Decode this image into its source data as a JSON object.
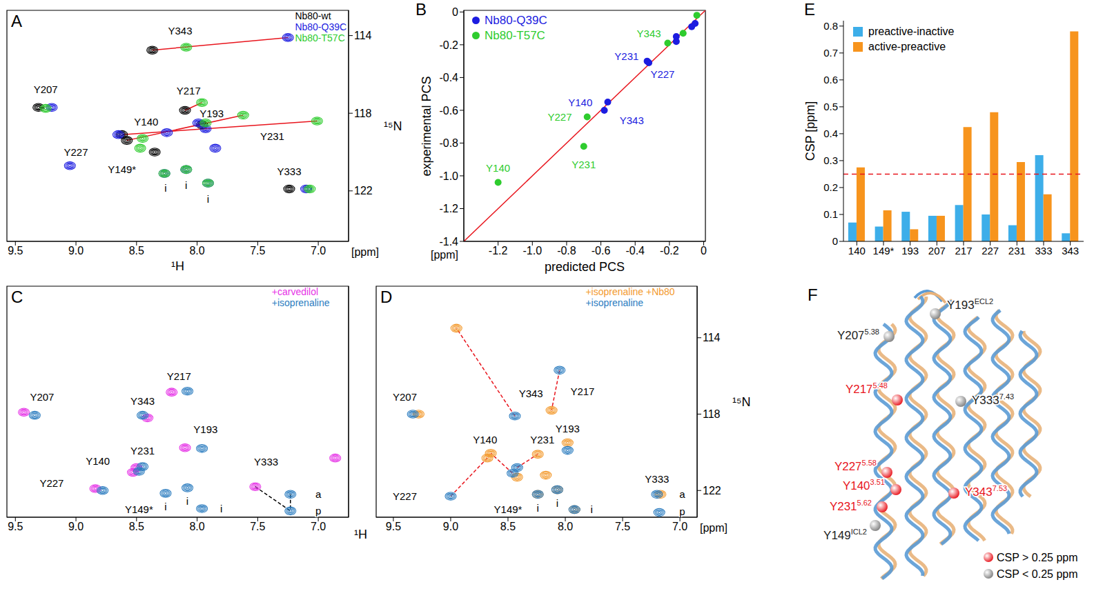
{
  "chart_data": [
    {
      "panel": "A",
      "type": "scatter",
      "x_label": "¹H",
      "x_unit": "[ppm]",
      "y_label": "¹⁵N",
      "xlim": [
        9.57,
        6.75
      ],
      "ylim": [
        124.6,
        112.7
      ],
      "xticks": [
        9.5,
        {
          "value": 9,
          "label": "9.0"
        },
        8.5,
        {
          "value": 8,
          "label": "8.0"
        },
        7.5,
        {
          "value": 7,
          "label": "7.0"
        }
      ],
      "yticks": [
        114,
        118,
        122
      ],
      "legend": "upper right",
      "series": [
        {
          "name": "Nb80-wt",
          "color": "#000000",
          "marker": "contour",
          "x": [
            8.37,
            9.31,
            8.1,
            8.62,
            8.58,
            7.96,
            8.35,
            7.24
          ],
          "y": [
            114.75,
            117.7,
            117.85,
            119.1,
            119.4,
            118.6,
            120.0,
            121.9
          ]
        },
        {
          "name": "Nb80-Q39C",
          "color": "#1c1ce0",
          "marker": "contour",
          "x": [
            7.25,
            9.2,
            8.25,
            8.65,
            7.99,
            7.93,
            7.1,
            8.27,
            8.09,
            7.91,
            7.85,
            9.05
          ],
          "y": [
            114.1,
            117.7,
            119.0,
            119.1,
            118.5,
            118.8,
            121.9,
            121.1,
            120.9,
            121.6,
            119.8,
            120.7
          ]
        },
        {
          "name": "Nb80-T57C",
          "color": "#2ecc2e",
          "marker": "contour",
          "x": [
            8.09,
            9.25,
            7.96,
            7.62,
            7.01,
            8.47,
            7.93,
            7.07,
            8.27,
            8.09,
            7.91,
            8.45
          ],
          "y": [
            114.6,
            117.75,
            117.45,
            118.1,
            118.4,
            119.8,
            118.5,
            121.9,
            121.1,
            120.9,
            121.6,
            119.3
          ]
        }
      ],
      "lines": [
        {
          "x": [
            8.37,
            7.25
          ],
          "y": [
            114.75,
            114.1
          ],
          "color": "#e8141c",
          "line_style": "solid"
        },
        {
          "x": [
            8.1,
            7.96
          ],
          "y": [
            117.85,
            117.45
          ],
          "color": "#e8141c",
          "line_style": "solid"
        },
        {
          "x": [
            8.62,
            7.01
          ],
          "y": [
            119.1,
            118.4
          ],
          "color": "#e8141c",
          "line_style": "solid"
        },
        {
          "x": [
            8.58,
            7.62
          ],
          "y": [
            119.4,
            118.1
          ],
          "color": "#e8141c",
          "line_style": "solid"
        }
      ],
      "annotations": [
        {
          "text": "Y343",
          "x": 8.14,
          "y": 113.75
        },
        {
          "text": "Y207",
          "x": 9.25,
          "y": 116.75
        },
        {
          "text": "Y217",
          "x": 8.07,
          "y": 116.85
        },
        {
          "text": "Y140",
          "x": 8.42,
          "y": 118.45
        },
        {
          "text": "Y193",
          "x": 7.88,
          "y": 118.0
        },
        {
          "text": "Y231",
          "x": 7.38,
          "y": 119.2
        },
        {
          "text": "Y227",
          "x": 9.0,
          "y": 120.0
        },
        {
          "text": "Y149*",
          "x": 8.62,
          "y": 120.9
        },
        {
          "text": "Y333",
          "x": 7.24,
          "y": 121.0
        },
        {
          "text": "i",
          "x": 8.26,
          "y": 121.85
        },
        {
          "text": "i",
          "x": 8.09,
          "y": 121.7
        },
        {
          "text": "i",
          "x": 7.91,
          "y": 122.4
        }
      ]
    },
    {
      "panel": "B",
      "type": "scatter",
      "x_label": "predicted PCS",
      "y_label": "experimental PCS",
      "x_unit": "[ppm]",
      "xlim": [
        -1.4,
        0.01
      ],
      "ylim": [
        -1.4,
        0.01
      ],
      "xticks": [
        -1.2,
        {
          "value": -1,
          "label": "-1.0"
        },
        -0.8,
        -0.6,
        -0.4,
        -0.2,
        0
      ],
      "yticks": [
        {
          "value": 0,
          "label": "0"
        },
        -0.2,
        -0.4,
        -0.6,
        -0.8,
        {
          "value": -1,
          "label": "-1.0"
        },
        -1.2,
        -1.4
      ],
      "legend": "upper left",
      "series": [
        {
          "name": "Nb80-Q39C",
          "color": "#1c1ce0",
          "marker": "circle",
          "x": [
            -0.56,
            -0.58,
            -0.33,
            -0.32,
            -0.16,
            -0.16,
            -0.07,
            -0.05
          ],
          "y": [
            -0.55,
            -0.6,
            -0.3,
            -0.31,
            -0.15,
            -0.18,
            -0.09,
            -0.07
          ]
        },
        {
          "name": "Nb80-T57C",
          "color": "#2ecc2e",
          "marker": "circle",
          "x": [
            -1.2,
            -0.7,
            -0.68,
            -0.21,
            -0.12,
            -0.04
          ],
          "y": [
            -1.04,
            -0.82,
            -0.64,
            -0.19,
            -0.13,
            -0.02
          ]
        }
      ],
      "lines": [
        {
          "x": [
            -1.4,
            0.01
          ],
          "y": [
            -1.4,
            0.01
          ],
          "color": "#e8141c",
          "line_style": "solid"
        }
      ],
      "annotations": [
        {
          "text": "Y343",
          "x": -0.32,
          "y": -0.13,
          "color": "#2ecc2e"
        },
        {
          "text": "Y231",
          "x": -0.45,
          "y": -0.27,
          "color": "#1c1ce0"
        },
        {
          "text": "Y227",
          "x": -0.24,
          "y": -0.38,
          "color": "#1c1ce0"
        },
        {
          "text": "Y140",
          "x": -0.72,
          "y": -0.55,
          "color": "#1c1ce0"
        },
        {
          "text": "Y343",
          "x": -0.42,
          "y": -0.66,
          "color": "#1c1ce0"
        },
        {
          "text": "Y227",
          "x": -0.84,
          "y": -0.64,
          "color": "#2ecc2e"
        },
        {
          "text": "Y231",
          "x": -0.7,
          "y": -0.93,
          "color": "#2ecc2e"
        },
        {
          "text": "Y140",
          "x": -1.2,
          "y": -0.95,
          "color": "#2ecc2e"
        }
      ]
    },
    {
      "panel": "C",
      "type": "scatter",
      "x_label": "¹H",
      "tick_labels": "x",
      "xlim": [
        9.57,
        6.75
      ],
      "ylim": [
        123.4,
        111.3
      ],
      "xticks": [
        9.5,
        {
          "value": 9,
          "label": "9.0"
        },
        8.5,
        {
          "value": 8,
          "label": "8.0"
        },
        7.5,
        {
          "value": 7,
          "label": "7.0"
        }
      ],
      "legend": "upper right",
      "series": [
        {
          "name": "+carvedilol",
          "color": "#e633e6",
          "marker": "contour",
          "x": [
            9.43,
            8.21,
            8.41,
            8.1,
            8.53,
            8.5,
            8.84,
            7.52,
            6.86
          ],
          "y": [
            117.9,
            116.85,
            118.2,
            119.76,
            121.05,
            120.8,
            121.9,
            121.8,
            120.3
          ]
        },
        {
          "name": "+isoprenaline",
          "color": "#2b7cbf",
          "marker": "contour",
          "x": [
            9.34,
            8.08,
            8.45,
            7.96,
            8.48,
            8.45,
            8.78,
            8.26,
            8.08,
            7.96,
            7.23,
            7.23
          ],
          "y": [
            118.06,
            116.8,
            118.06,
            119.8,
            121.0,
            120.75,
            122.0,
            122.15,
            121.86,
            122.95,
            122.2,
            123.07
          ]
        }
      ],
      "lines": [
        {
          "x": [
            7.52,
            7.23
          ],
          "y": [
            121.8,
            123.07
          ],
          "color": "#000000",
          "line_style": "dashed"
        },
        {
          "x": [
            7.23,
            7.23
          ],
          "y": [
            122.2,
            123.07
          ],
          "color": "#000000",
          "line_style": "dashed"
        }
      ],
      "annotations": [
        {
          "text": "Y217",
          "x": 8.15,
          "y": 116.0
        },
        {
          "text": "Y207",
          "x": 9.28,
          "y": 117.1
        },
        {
          "text": "Y343",
          "x": 8.45,
          "y": 117.3
        },
        {
          "text": "Y193",
          "x": 7.93,
          "y": 118.8
        },
        {
          "text": "Y231",
          "x": 8.45,
          "y": 119.9
        },
        {
          "text": "Y140",
          "x": 8.82,
          "y": 120.45
        },
        {
          "text": "Y227",
          "x": 9.2,
          "y": 121.6
        },
        {
          "text": "Y149*",
          "x": 8.48,
          "y": 123.0
        },
        {
          "text": "i",
          "x": 8.26,
          "y": 122.85
        },
        {
          "text": "i",
          "x": 8.08,
          "y": 122.55
        },
        {
          "text": "i",
          "x": 7.8,
          "y": 122.95
        },
        {
          "text": "Y333",
          "x": 7.43,
          "y": 120.5
        },
        {
          "text": "a",
          "x": 7.0,
          "y": 122.2
        },
        {
          "text": "p",
          "x": 7.0,
          "y": 123.05
        }
      ]
    },
    {
      "panel": "D",
      "type": "scatter",
      "x_unit": "[ppm]",
      "y_label": "¹⁵N",
      "xlim": [
        9.65,
        6.85
      ],
      "ylim": [
        123.4,
        111.3
      ],
      "xticks": [
        9.5,
        {
          "value": 9,
          "label": "9.0"
        },
        8.5,
        {
          "value": 8,
          "label": "8.0"
        },
        7.5,
        {
          "value": 7,
          "label": "7.0"
        }
      ],
      "yticks": [
        114,
        118,
        122
      ],
      "legend": "upper right",
      "series": [
        {
          "name": "+isoprenaline +Nb80",
          "color": "#f39a2e",
          "marker": "contour",
          "x": [
            8.95,
            8.12,
            9.28,
            7.98,
            8.65,
            8.24,
            8.42,
            8.68,
            8.24,
            8.07,
            7.92,
            7.17,
            8.17
          ],
          "y": [
            113.5,
            117.8,
            118.0,
            119.5,
            120.05,
            120.1,
            121.3,
            120.3,
            122.2,
            121.96,
            123.0,
            122.2,
            121.2
          ]
        },
        {
          "name": "+isoprenaline",
          "color": "#2b7cbf",
          "marker": "contour",
          "x": [
            9.33,
            8.44,
            8.05,
            7.98,
            8.46,
            8.42,
            9.0,
            8.24,
            8.07,
            7.92,
            7.2,
            7.18
          ],
          "y": [
            118.0,
            118.1,
            115.7,
            119.9,
            121.1,
            120.8,
            122.3,
            122.2,
            121.96,
            123.0,
            122.2,
            123.15
          ]
        }
      ],
      "lines": [
        {
          "x": [
            8.44,
            8.95
          ],
          "y": [
            118.1,
            113.5
          ],
          "color": "#e8141c",
          "line_style": "dashed"
        },
        {
          "x": [
            8.05,
            8.12
          ],
          "y": [
            115.7,
            117.8
          ],
          "color": "#e8141c",
          "line_style": "dashed"
        },
        {
          "x": [
            8.46,
            8.65
          ],
          "y": [
            121.1,
            120.05
          ],
          "color": "#e8141c",
          "line_style": "dashed"
        },
        {
          "x": [
            8.42,
            8.24
          ],
          "y": [
            120.8,
            120.1
          ],
          "color": "#e8141c",
          "line_style": "dashed"
        },
        {
          "x": [
            9.0,
            8.68
          ],
          "y": [
            122.3,
            120.3
          ],
          "color": "#e8141c",
          "line_style": "dashed"
        }
      ],
      "annotations": [
        {
          "text": "Y343",
          "x": 8.3,
          "y": 116.9
        },
        {
          "text": "Y217",
          "x": 7.85,
          "y": 116.8
        },
        {
          "text": "Y207",
          "x": 9.4,
          "y": 117.1
        },
        {
          "text": "Y140",
          "x": 8.7,
          "y": 119.35
        },
        {
          "text": "Y231",
          "x": 8.2,
          "y": 119.35
        },
        {
          "text": "Y193",
          "x": 7.98,
          "y": 118.75
        },
        {
          "text": "Y227",
          "x": 9.4,
          "y": 122.3
        },
        {
          "text": "Y149*",
          "x": 8.5,
          "y": 123.0
        },
        {
          "text": "i",
          "x": 8.24,
          "y": 122.9
        },
        {
          "text": "i",
          "x": 8.07,
          "y": 122.65
        },
        {
          "text": "i",
          "x": 7.77,
          "y": 123.0
        },
        {
          "text": "Y333",
          "x": 7.2,
          "y": 121.4
        },
        {
          "text": "a",
          "x": 6.98,
          "y": 122.2
        },
        {
          "text": "p",
          "x": 6.98,
          "y": 123.1
        }
      ]
    },
    {
      "panel": "E",
      "type": "bar",
      "y_label": "CSP [ppm]",
      "categories": [
        "140",
        "149*",
        "193",
        "207",
        "217",
        "227",
        "231",
        "333",
        "343"
      ],
      "series": [
        {
          "name": "preactive-inactive",
          "color": "#3daee9",
          "values": [
            0.07,
            0.055,
            0.11,
            0.095,
            0.135,
            0.1,
            0.06,
            0.32,
            0.03
          ]
        },
        {
          "name": "active-preactive",
          "color": "#f7941d",
          "values": [
            0.275,
            0.115,
            0.045,
            0.095,
            0.425,
            0.48,
            0.295,
            0.175,
            0.78
          ]
        }
      ],
      "ylim": [
        0,
        0.82
      ],
      "yticks": [
        0,
        0.1,
        0.2,
        0.3,
        0.4,
        0.5,
        0.6,
        0.7,
        0.8
      ],
      "threshold": 0.25,
      "legend": "upper left"
    }
  ],
  "diagram": {
    "panel": "F",
    "labels": [
      {
        "text": "Y193",
        "sup": "ECL2",
        "color": "#808080"
      },
      {
        "text": "Y207",
        "sup": "5.38",
        "color": "#808080"
      },
      {
        "text": "Y217",
        "sup": "5.48",
        "color": "#e8141c"
      },
      {
        "text": "Y333",
        "sup": "7.43",
        "color": "#808080"
      },
      {
        "text": "Y227",
        "sup": "5.58",
        "color": "#e8141c"
      },
      {
        "text": "Y140",
        "sup": "3.51",
        "color": "#e8141c"
      },
      {
        "text": "Y343",
        "sup": "7.53",
        "color": "#e8141c"
      },
      {
        "text": "Y231",
        "sup": "5.62",
        "color": "#e8141c"
      },
      {
        "text": "Y149",
        "sup": "ICL2",
        "color": "#808080"
      }
    ],
    "legend_entries": [
      {
        "text": "CSP > 0.25 ppm",
        "color": "#e8141c"
      },
      {
        "text": "CSP < 0.25 ppm",
        "color": "#808080"
      }
    ]
  }
}
